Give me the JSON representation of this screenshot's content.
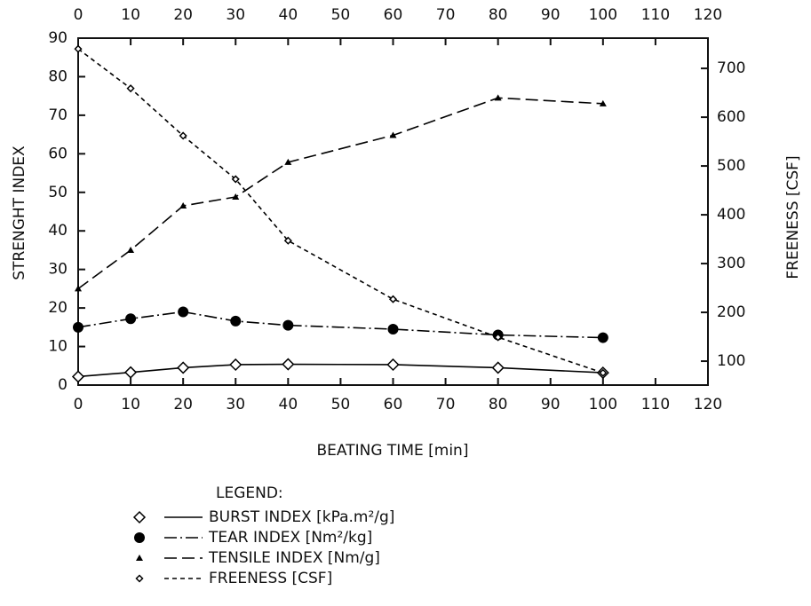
{
  "chart_data": {
    "type": "line",
    "x_label": "BEATING TIME [min]",
    "y_label": "STRENGHT INDEX",
    "y2_label": "FREENESS [CSF]",
    "legend_title": "LEGEND:",
    "x": [
      0,
      10,
      20,
      30,
      40,
      60,
      80,
      100
    ],
    "xlim": [
      0,
      120
    ],
    "xticks": [
      0,
      10,
      20,
      30,
      40,
      50,
      60,
      70,
      80,
      90,
      100,
      110,
      120
    ],
    "ylim": [
      0,
      90
    ],
    "yticks": [
      0,
      10,
      20,
      30,
      40,
      50,
      60,
      70,
      80,
      90
    ],
    "y2lim": [
      51,
      762
    ],
    "y2ticks": [
      100,
      200,
      300,
      400,
      500,
      600,
      700
    ],
    "grid": false,
    "series": [
      {
        "name": "BURST INDEX [kPa.m²/g]",
        "color": "#000000",
        "marker": "diamond-open",
        "linestyle": "solid",
        "values": [
          2.2,
          3.3,
          4.5,
          5.3,
          5.4,
          5.3,
          4.5,
          3.2
        ]
      },
      {
        "name": "TEAR INDEX [Nm²/kg]",
        "color": "#000000",
        "marker": "circle-filled",
        "linestyle": "dashdot",
        "values": [
          15,
          17.2,
          19,
          16.6,
          15.5,
          14.5,
          13,
          12.3
        ]
      },
      {
        "name": "TENSILE INDEX [Nm/g]",
        "color": "#000000",
        "marker": "triangle",
        "linestyle": "dashed",
        "values": [
          25,
          35,
          46.5,
          48.8,
          57.8,
          64.8,
          74.5,
          73
        ]
      },
      {
        "name": "FREENESS [CSF]",
        "color": "#000000",
        "marker": "diamond-small",
        "linestyle": "dotted",
        "axis": "y2",
        "values": [
          740,
          659,
          562,
          473,
          347,
          227,
          149,
          76
        ]
      }
    ]
  }
}
